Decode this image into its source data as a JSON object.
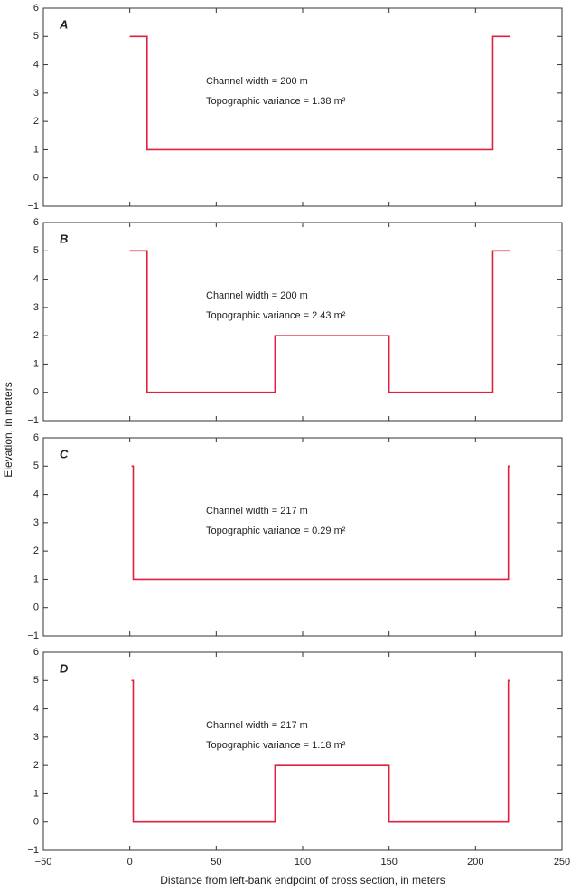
{
  "chart_data": [
    {
      "type": "line",
      "label": "A",
      "annotations": [
        "Channel width = 200 m",
        "Topographic variance = 1.38 m²"
      ],
      "x": [
        0,
        10,
        10,
        210,
        210,
        220
      ],
      "values": [
        5,
        5,
        1,
        1,
        5,
        5
      ],
      "color": "#e0203f",
      "xlim": [
        -50,
        250
      ],
      "xticks": [
        {
          "value": -50,
          "label": "−50"
        },
        0,
        50,
        100,
        150,
        200,
        250
      ],
      "ylim": [
        -1,
        6
      ],
      "yticks": [
        {
          "value": -1,
          "label": "−1"
        },
        0,
        1,
        2,
        3,
        4,
        5,
        6
      ]
    },
    {
      "type": "line",
      "label": "B",
      "annotations": [
        "Channel width = 200 m",
        "Topographic variance = 2.43 m²"
      ],
      "x": [
        0,
        10,
        10,
        84,
        84,
        150,
        150,
        210,
        210,
        220
      ],
      "values": [
        5,
        5,
        0,
        0,
        2,
        2,
        0,
        0,
        5,
        5
      ],
      "color": "#e0203f",
      "xlim": [
        -50,
        250
      ],
      "xticks": [
        {
          "value": -50,
          "label": "−50"
        },
        0,
        50,
        100,
        150,
        200,
        250
      ],
      "ylim": [
        -1,
        6
      ],
      "yticks": [
        {
          "value": -1,
          "label": "−1"
        },
        0,
        1,
        2,
        3,
        4,
        5,
        6
      ]
    },
    {
      "type": "line",
      "label": "C",
      "annotations": [
        "Channel width = 217 m",
        "Topographic variance = 0.29 m²"
      ],
      "x": [
        1,
        2,
        2,
        219,
        219,
        220
      ],
      "values": [
        5,
        5,
        1,
        1,
        5,
        5
      ],
      "color": "#e0203f",
      "xlim": [
        -50,
        250
      ],
      "xticks": [
        {
          "value": -50,
          "label": "−50"
        },
        0,
        50,
        100,
        150,
        200,
        250
      ],
      "ylim": [
        -1,
        6
      ],
      "yticks": [
        {
          "value": -1,
          "label": "−1"
        },
        0,
        1,
        2,
        3,
        4,
        5,
        6
      ]
    },
    {
      "type": "line",
      "label": "D",
      "annotations": [
        "Channel width = 217 m",
        "Topographic variance = 1.18 m²"
      ],
      "x": [
        1,
        2,
        2,
        84,
        84,
        150,
        150,
        219,
        219,
        220
      ],
      "values": [
        5,
        5,
        0,
        0,
        2,
        2,
        0,
        0,
        5,
        5
      ],
      "color": "#e0203f",
      "xlim": [
        -50,
        250
      ],
      "xticks": [
        {
          "value": -50,
          "label": "−50"
        },
        0,
        50,
        100,
        150,
        200,
        250
      ],
      "ylim": [
        -1,
        6
      ],
      "yticks": [
        {
          "value": -1,
          "label": "−1"
        },
        0,
        1,
        2,
        3,
        4,
        5,
        6
      ],
      "xlabel": "Distance from left-bank endpoint of cross section, in meters",
      "ylabel": "Elevation, in meters"
    }
  ]
}
